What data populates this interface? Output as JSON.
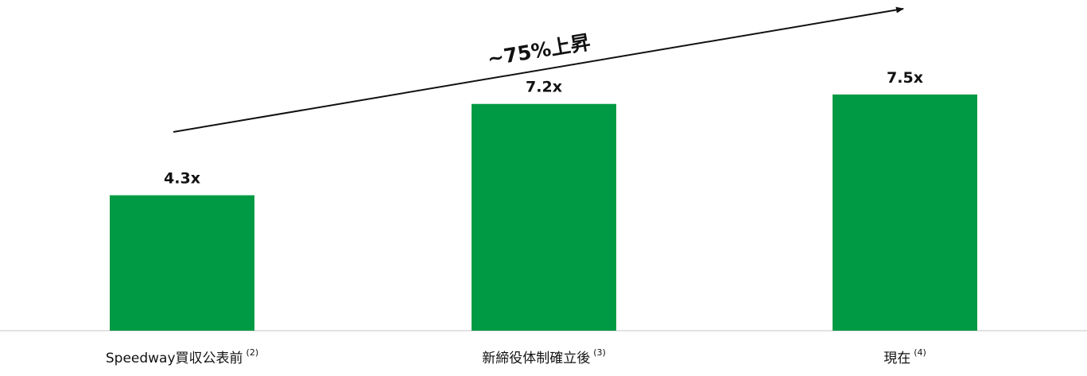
{
  "chart_data": {
    "type": "bar",
    "categories": [
      "Speedway買収公表前",
      "新締役体制確立後",
      "現在"
    ],
    "category_notes": [
      "(2)",
      "(3)",
      "(4)"
    ],
    "values": [
      4.3,
      7.2,
      7.5
    ],
    "data_labels": [
      "4.3x",
      "7.2x",
      "7.5x"
    ],
    "ylim": [
      0,
      10.5
    ],
    "grid": false,
    "legend": "none",
    "bar_color": "#009A44",
    "baseline_color": "#d9d9d9",
    "annotation": {
      "text": "~75%上昇",
      "kind": "arrow",
      "color": "#111111"
    }
  }
}
